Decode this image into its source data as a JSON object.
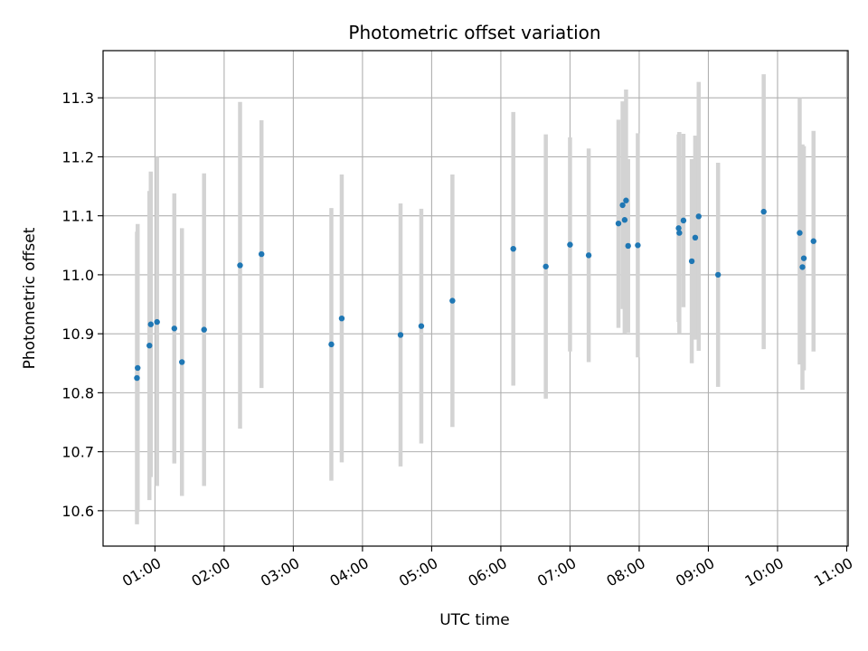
{
  "chart_data": {
    "type": "scatter",
    "title": "Photometric offset variation",
    "xlabel": "UTC time",
    "ylabel": "Photometric offset",
    "xlim": [
      0.25,
      11.02
    ],
    "ylim": [
      10.54,
      11.38
    ],
    "grid": true,
    "marker_color": "#1f77b4",
    "errorbar_color": "#d3d3d3",
    "x_ticks": [
      {
        "value": 1,
        "label": "01:00"
      },
      {
        "value": 2,
        "label": "02:00"
      },
      {
        "value": 3,
        "label": "03:00"
      },
      {
        "value": 4,
        "label": "04:00"
      },
      {
        "value": 5,
        "label": "05:00"
      },
      {
        "value": 6,
        "label": "06:00"
      },
      {
        "value": 7,
        "label": "07:00"
      },
      {
        "value": 8,
        "label": "08:00"
      },
      {
        "value": 9,
        "label": "09:00"
      },
      {
        "value": 10,
        "label": "10:00"
      },
      {
        "value": 11,
        "label": "11:00"
      }
    ],
    "y_ticks": [
      {
        "value": 10.6,
        "label": "10.6"
      },
      {
        "value": 10.7,
        "label": "10.7"
      },
      {
        "value": 10.8,
        "label": "10.8"
      },
      {
        "value": 10.9,
        "label": "10.9"
      },
      {
        "value": 11.0,
        "label": "11.0"
      },
      {
        "value": 11.1,
        "label": "11.1"
      },
      {
        "value": 11.2,
        "label": "11.2"
      },
      {
        "value": 11.3,
        "label": "11.3"
      }
    ],
    "points": [
      {
        "x": 0.74,
        "y": 10.825,
        "err_low": 10.577,
        "err_high": 11.073
      },
      {
        "x": 0.75,
        "y": 10.842,
        "err_low": 10.598,
        "err_high": 11.086
      },
      {
        "x": 0.92,
        "y": 10.88,
        "err_low": 10.618,
        "err_high": 11.142
      },
      {
        "x": 0.94,
        "y": 10.916,
        "err_low": 10.657,
        "err_high": 11.175
      },
      {
        "x": 1.03,
        "y": 10.92,
        "err_low": 10.642,
        "err_high": 11.2
      },
      {
        "x": 1.28,
        "y": 10.909,
        "err_low": 10.68,
        "err_high": 11.138
      },
      {
        "x": 1.39,
        "y": 10.852,
        "err_low": 10.625,
        "err_high": 11.079
      },
      {
        "x": 1.71,
        "y": 10.907,
        "err_low": 10.642,
        "err_high": 11.172
      },
      {
        "x": 2.23,
        "y": 11.016,
        "err_low": 10.739,
        "err_high": 11.293
      },
      {
        "x": 2.54,
        "y": 11.035,
        "err_low": 10.808,
        "err_high": 11.262
      },
      {
        "x": 3.55,
        "y": 10.882,
        "err_low": 10.651,
        "err_high": 11.113
      },
      {
        "x": 3.7,
        "y": 10.926,
        "err_low": 10.682,
        "err_high": 11.17
      },
      {
        "x": 4.55,
        "y": 10.898,
        "err_low": 10.675,
        "err_high": 11.121
      },
      {
        "x": 4.85,
        "y": 10.913,
        "err_low": 10.714,
        "err_high": 11.112
      },
      {
        "x": 5.3,
        "y": 10.956,
        "err_low": 10.742,
        "err_high": 11.17
      },
      {
        "x": 6.18,
        "y": 11.044,
        "err_low": 10.812,
        "err_high": 11.276
      },
      {
        "x": 6.65,
        "y": 11.014,
        "err_low": 10.79,
        "err_high": 11.238
      },
      {
        "x": 7.0,
        "y": 11.051,
        "err_low": 10.87,
        "err_high": 11.233
      },
      {
        "x": 7.27,
        "y": 11.033,
        "err_low": 10.852,
        "err_high": 11.214
      },
      {
        "x": 7.7,
        "y": 11.087,
        "err_low": 10.91,
        "err_high": 11.263
      },
      {
        "x": 7.76,
        "y": 11.118,
        "err_low": 10.942,
        "err_high": 11.294
      },
      {
        "x": 7.79,
        "y": 11.093,
        "err_low": 10.9,
        "err_high": 11.286
      },
      {
        "x": 7.81,
        "y": 11.126,
        "err_low": 10.938,
        "err_high": 11.314
      },
      {
        "x": 7.84,
        "y": 11.049,
        "err_low": 10.902,
        "err_high": 11.196
      },
      {
        "x": 7.98,
        "y": 11.05,
        "err_low": 10.86,
        "err_high": 11.24
      },
      {
        "x": 8.57,
        "y": 11.079,
        "err_low": 10.92,
        "err_high": 11.238
      },
      {
        "x": 8.58,
        "y": 11.071,
        "err_low": 10.9,
        "err_high": 11.242
      },
      {
        "x": 8.64,
        "y": 11.092,
        "err_low": 10.945,
        "err_high": 11.239
      },
      {
        "x": 8.76,
        "y": 11.023,
        "err_low": 10.85,
        "err_high": 11.196
      },
      {
        "x": 8.81,
        "y": 11.063,
        "err_low": 10.89,
        "err_high": 11.236
      },
      {
        "x": 8.86,
        "y": 11.099,
        "err_low": 10.871,
        "err_high": 11.327
      },
      {
        "x": 9.14,
        "y": 11.0,
        "err_low": 10.81,
        "err_high": 11.19
      },
      {
        "x": 9.8,
        "y": 11.107,
        "err_low": 10.874,
        "err_high": 11.34
      },
      {
        "x": 10.32,
        "y": 11.071,
        "err_low": 10.848,
        "err_high": 11.3
      },
      {
        "x": 10.36,
        "y": 11.013,
        "err_low": 10.805,
        "err_high": 11.221
      },
      {
        "x": 10.38,
        "y": 11.028,
        "err_low": 10.838,
        "err_high": 11.218
      },
      {
        "x": 10.52,
        "y": 11.057,
        "err_low": 10.87,
        "err_high": 11.244
      }
    ]
  }
}
